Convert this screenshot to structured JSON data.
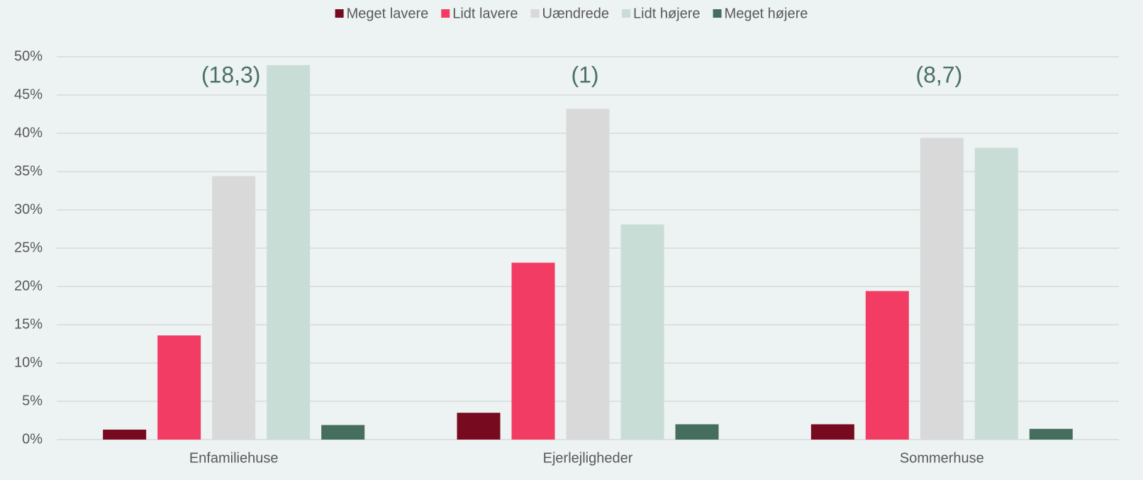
{
  "chart_data": {
    "type": "bar",
    "categories": [
      "Enfamiliehuse",
      "Ejerlejligheder",
      "Sommerhuse"
    ],
    "series": [
      {
        "name": "Meget lavere",
        "color": "#780a1f",
        "values": [
          1.3,
          3.5,
          2.0
        ]
      },
      {
        "name": "Lidt lavere",
        "color": "#f23c64",
        "values": [
          13.6,
          23.1,
          19.4
        ]
      },
      {
        "name": "Uændrede",
        "color": "#d9d9d9",
        "values": [
          34.4,
          43.2,
          39.4
        ]
      },
      {
        "name": "Lidt højere",
        "color": "#c9ddd7",
        "values": [
          48.9,
          28.1,
          38.1
        ]
      },
      {
        "name": "Meget højere",
        "color": "#456e5e",
        "values": [
          1.9,
          2.0,
          1.4
        ]
      }
    ],
    "annotations": [
      "(18,3)",
      "(1)",
      "(8,7)"
    ],
    "ylim": [
      0,
      50
    ],
    "yticks": [
      {
        "value": 0,
        "label": "0%"
      },
      {
        "value": 5,
        "label": "5%"
      },
      {
        "value": 10,
        "label": "10%"
      },
      {
        "value": 15,
        "label": "15%"
      },
      {
        "value": 20,
        "label": "20%"
      },
      {
        "value": 25,
        "label": "25%"
      },
      {
        "value": 30,
        "label": "30%"
      },
      {
        "value": 35,
        "label": "35%"
      },
      {
        "value": 40,
        "label": "40%"
      },
      {
        "value": 45,
        "label": "45%"
      },
      {
        "value": 50,
        "label": "50%"
      }
    ],
    "grid": true,
    "legend": "top"
  }
}
